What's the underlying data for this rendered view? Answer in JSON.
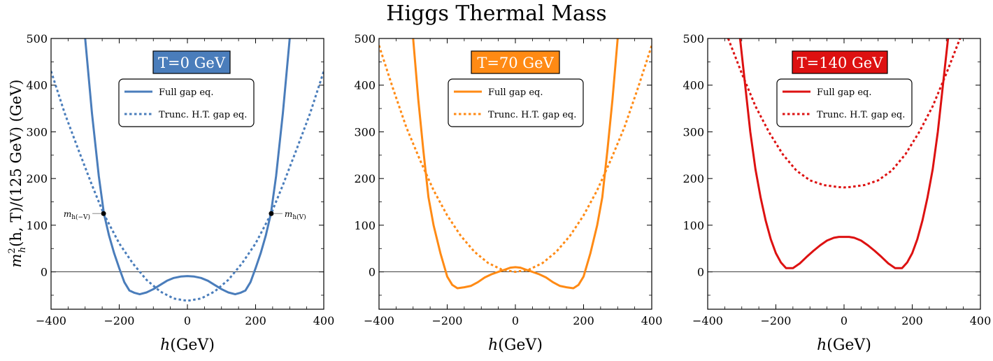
{
  "figure": {
    "title": "Higgs Thermal Mass",
    "ylabel": "m_h^2(h,T)/(125 GeV) (GeV)",
    "xlabel": "h(GeV)"
  },
  "colors": {
    "panel1": "#4a7dbb",
    "panel2": "#ff8a14",
    "panel3": "#dd1111",
    "zero_line": "#000000"
  },
  "chart_data": [
    {
      "type": "line",
      "title": "T=0 GeV",
      "title_bg": "#4a7dbb",
      "xlim": [
        -400,
        400
      ],
      "ylim": [
        -80,
        500
      ],
      "xticks": [
        -400,
        -200,
        0,
        200,
        400
      ],
      "yticks": [
        0,
        100,
        200,
        300,
        400,
        500
      ],
      "legend": "top-center",
      "grid": false,
      "series": [
        {
          "name": "Full gap eq.",
          "style": "solid",
          "color": "#4a7dbb",
          "x": [
            -300,
            -280,
            -260,
            -245,
            -230,
            -215,
            -200,
            -185,
            -170,
            -155,
            -140,
            -120,
            -100,
            -80,
            -60,
            -40,
            -20,
            0,
            20,
            40,
            60,
            80,
            100,
            120,
            140,
            155,
            170,
            185,
            200,
            215,
            230,
            245,
            260,
            280,
            300
          ],
          "y": [
            500,
            340,
            205,
            125,
            78,
            40,
            8,
            -22,
            -40,
            -45,
            -48,
            -44,
            -37,
            -28,
            -19,
            -13,
            -10,
            -9,
            -10,
            -13,
            -19,
            -28,
            -37,
            -44,
            -48,
            -45,
            -40,
            -22,
            8,
            40,
            78,
            125,
            205,
            340,
            500
          ]
        },
        {
          "name": "Trunc. H.T. gap eq.",
          "style": "dotted",
          "color": "#4a7dbb",
          "x": [
            -400,
            -360,
            -320,
            -280,
            -246,
            -200,
            -160,
            -120,
            -80,
            -40,
            0,
            40,
            80,
            120,
            160,
            200,
            246,
            280,
            320,
            360,
            400
          ],
          "y": [
            430,
            340,
            262,
            186,
            125,
            61,
            18,
            -17,
            -42,
            -57,
            -62,
            -57,
            -42,
            -17,
            18,
            61,
            125,
            186,
            262,
            340,
            430
          ]
        }
      ],
      "annotations": [
        {
          "text": "m_h(−V)",
          "x": -246,
          "y": 125,
          "side": "left"
        },
        {
          "text": "m_h(V)",
          "x": 246,
          "y": 125,
          "side": "right"
        }
      ]
    },
    {
      "type": "line",
      "title": "T=70 GeV",
      "title_bg": "#ff8a14",
      "xlim": [
        -400,
        400
      ],
      "ylim": [
        -80,
        500
      ],
      "xticks": [
        -400,
        -200,
        0,
        200,
        400
      ],
      "yticks": [
        0,
        100,
        200,
        300,
        400,
        500
      ],
      "legend": "top-center",
      "grid": false,
      "series": [
        {
          "name": "Full gap eq.",
          "style": "solid",
          "color": "#ff8a14",
          "x": [
            -300,
            -285,
            -270,
            -255,
            -240,
            -220,
            -200,
            -185,
            -170,
            -150,
            -130,
            -110,
            -90,
            -70,
            -50,
            -30,
            -15,
            0,
            15,
            30,
            50,
            70,
            90,
            110,
            130,
            150,
            170,
            185,
            200,
            220,
            240,
            255,
            270,
            285,
            300
          ],
          "y": [
            500,
            370,
            260,
            160,
            100,
            40,
            -10,
            -28,
            -35,
            -33,
            -30,
            -22,
            -12,
            -5,
            0,
            5,
            9,
            10,
            9,
            5,
            0,
            -5,
            -12,
            -22,
            -30,
            -33,
            -35,
            -28,
            -10,
            40,
            100,
            160,
            260,
            370,
            500
          ]
        },
        {
          "name": "Trunc. H.T. gap eq.",
          "style": "dotted",
          "color": "#ff8a14",
          "x": [
            -400,
            -360,
            -320,
            -280,
            -240,
            -200,
            -160,
            -120,
            -80,
            -40,
            0,
            40,
            80,
            120,
            160,
            200,
            240,
            280,
            320,
            360,
            400
          ],
          "y": [
            485,
            395,
            310,
            240,
            175,
            121,
            77,
            43,
            19,
            5,
            0,
            5,
            19,
            43,
            77,
            121,
            175,
            240,
            310,
            395,
            485
          ]
        }
      ]
    },
    {
      "type": "line",
      "title": "T=140 GeV",
      "title_bg": "#dd1111",
      "xlim": [
        -400,
        400
      ],
      "ylim": [
        -80,
        500
      ],
      "xticks": [
        -400,
        -200,
        0,
        200,
        400
      ],
      "yticks": [
        0,
        100,
        200,
        300,
        400,
        500
      ],
      "legend": "top-center",
      "grid": false,
      "series": [
        {
          "name": "Full gap eq.",
          "style": "solid",
          "color": "#dd1111",
          "x": [
            -305,
            -290,
            -275,
            -260,
            -245,
            -230,
            -215,
            -200,
            -185,
            -170,
            -150,
            -130,
            -110,
            -90,
            -70,
            -50,
            -30,
            -15,
            0,
            15,
            30,
            50,
            70,
            90,
            110,
            130,
            150,
            170,
            185,
            200,
            215,
            230,
            245,
            260,
            275,
            290,
            305
          ],
          "y": [
            500,
            400,
            300,
            220,
            160,
            110,
            70,
            40,
            20,
            8,
            8,
            18,
            32,
            45,
            57,
            67,
            73,
            75,
            75,
            75,
            73,
            67,
            57,
            45,
            32,
            18,
            8,
            8,
            20,
            40,
            70,
            110,
            160,
            220,
            300,
            400,
            500
          ]
        },
        {
          "name": "Trunc. H.T. gap eq.",
          "style": "dotted",
          "color": "#dd1111",
          "x": [
            -340,
            -300,
            -260,
            -220,
            -180,
            -140,
            -100,
            -60,
            -20,
            0,
            20,
            60,
            100,
            140,
            180,
            220,
            260,
            300,
            340
          ],
          "y": [
            500,
            425,
            355,
            299,
            252,
            217,
            196,
            186,
            182,
            181,
            182,
            186,
            196,
            217,
            252,
            299,
            355,
            425,
            500
          ]
        }
      ]
    }
  ]
}
